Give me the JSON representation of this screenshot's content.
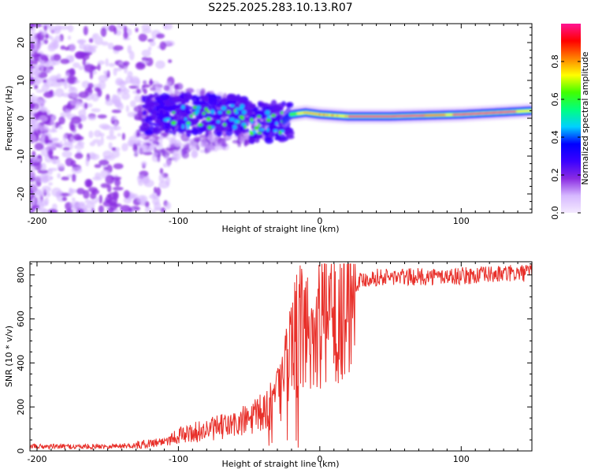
{
  "figure": {
    "title": "S225.2025.283.10.13.R07"
  },
  "chart_data": [
    {
      "type": "heatmap",
      "title": "",
      "xlabel": "Height of straight line (km)",
      "ylabel": "Frequency (Hz)",
      "xlim": [
        -205,
        150
      ],
      "ylim": [
        -25,
        25
      ],
      "xticks": [
        -200,
        -100,
        0,
        100
      ],
      "yticks": [
        -20,
        -10,
        0,
        10,
        20
      ],
      "colorbar": {
        "label": "Normalized spectral amplitude",
        "range": [
          0,
          1
        ],
        "ticks": [
          0.0,
          0.2,
          0.4,
          0.6,
          0.8
        ],
        "colors": [
          "#f4eaff",
          "#d6b8ff",
          "#8a2be2",
          "#3a00ff",
          "#0000ff",
          "#00d0ff",
          "#00ff80",
          "#40ff00",
          "#ffff00",
          "#ff8000",
          "#ff0000",
          "#ff1493"
        ]
      },
      "features": {
        "ridge_km": [
          -30,
          -20,
          -10,
          0,
          20,
          50,
          100,
          150
        ],
        "ridge_hz": [
          -2,
          1,
          1.5,
          1,
          0.5,
          0.5,
          1,
          2
        ]
      }
    },
    {
      "type": "line",
      "title": "",
      "xlabel": "Height of straight line (km)",
      "ylabel": "SNR (10 * v/v)",
      "xlim": [
        -205,
        150
      ],
      "ylim": [
        0,
        860
      ],
      "xticks": [
        -200,
        -100,
        0,
        100
      ],
      "yticks": [
        0,
        200,
        400,
        600,
        800
      ],
      "color": "#e8302a",
      "envelope": {
        "x": [
          -205,
          -160,
          -130,
          -110,
          -100,
          -80,
          -60,
          -45,
          -35,
          -30,
          -25,
          -20,
          -15,
          -10,
          -5,
          0,
          5,
          10,
          15,
          20,
          25,
          30,
          40,
          60,
          100,
          150
        ],
        "y": [
          20,
          20,
          25,
          45,
          70,
          95,
          120,
          155,
          200,
          250,
          350,
          480,
          540,
          560,
          540,
          580,
          600,
          630,
          700,
          740,
          760,
          780,
          790,
          790,
          795,
          810
        ]
      }
    }
  ]
}
